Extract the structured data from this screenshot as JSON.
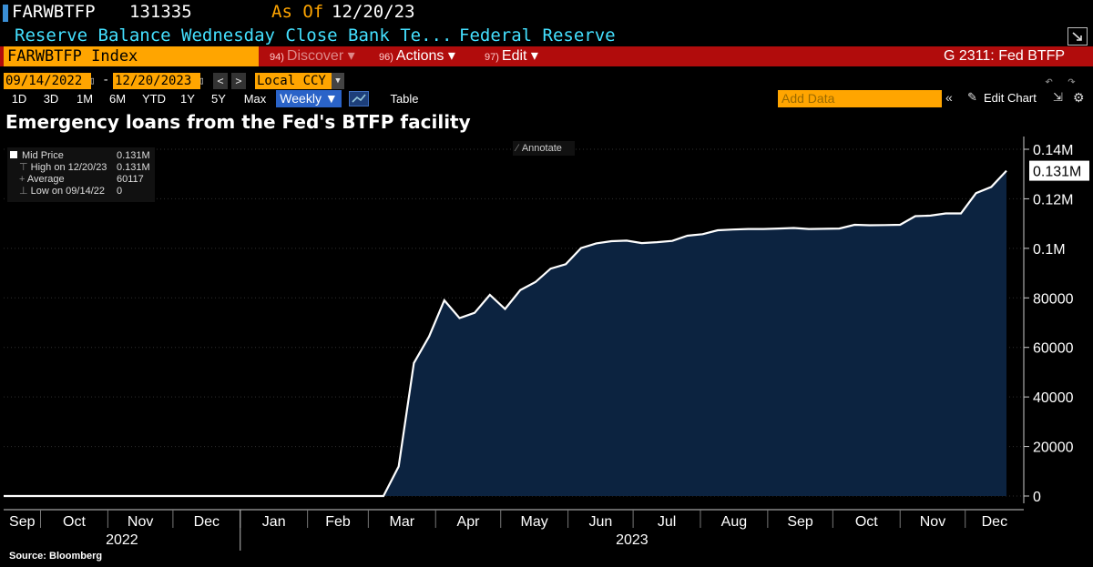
{
  "header": {
    "ticker": "FARWBTFP",
    "value": "131335",
    "as_of_label": "As Of",
    "as_of_date": "12/20/23",
    "description": "Reserve Balance Wednesday Close Bank Te...",
    "source_org": "Federal Reserve"
  },
  "toolbar": {
    "security": "FARWBTFP Index",
    "discover_num": "94)",
    "discover": "Discover",
    "actions_num": "96)",
    "actions": "Actions",
    "edit_num": "97)",
    "edit": "Edit",
    "page_code": "G 2311: Fed BTFP"
  },
  "range": {
    "start_date": "09/14/2022",
    "end_date": "12/20/2023",
    "currency": "Local CCY"
  },
  "periods": [
    "1D",
    "3D",
    "1M",
    "6M",
    "YTD",
    "1Y",
    "5Y",
    "Max"
  ],
  "frequency": "Weekly",
  "table_label": "Table",
  "add_data_placeholder": "Add Data",
  "edit_chart_label": "Edit Chart",
  "legend": {
    "rows": [
      {
        "label": "Mid Price",
        "value": "0.131M"
      },
      {
        "label": "High on 12/20/23",
        "value": "0.131M"
      },
      {
        "label": "Average",
        "value": "60117"
      },
      {
        "label": "Low on 09/14/22",
        "value": "0"
      }
    ]
  },
  "annotate_label": "Annotate",
  "source": "Source: Bloomberg",
  "colors": {
    "accent": "#ffa500",
    "menu_red": "#b10c0c",
    "fill": "#0c2340",
    "line": "#ffffff",
    "cyan": "#44e0ff"
  },
  "chart_data": {
    "type": "area",
    "title": "Emergency loans from the Fed's BTFP facility",
    "xlabel": "",
    "ylabel": "",
    "ylim": [
      0,
      140000
    ],
    "y_ticks": [
      {
        "value": 0,
        "label": "0"
      },
      {
        "value": 20000,
        "label": "20000"
      },
      {
        "value": 40000,
        "label": "40000"
      },
      {
        "value": 60000,
        "label": "60000"
      },
      {
        "value": 80000,
        "label": "80000"
      },
      {
        "value": 100000,
        "label": "0.1M"
      },
      {
        "value": 120000,
        "label": "0.12M"
      },
      {
        "value": 140000,
        "label": "0.14M"
      }
    ],
    "last_value_label": "0.131M",
    "months": [
      "Sep",
      "Oct",
      "Nov",
      "Dec",
      "Jan",
      "Feb",
      "Mar",
      "Apr",
      "May",
      "Jun",
      "Jul",
      "Aug",
      "Sep",
      "Oct",
      "Nov",
      "Dec"
    ],
    "years": [
      "2022",
      "2023"
    ],
    "series": [
      {
        "name": "FARWBTFP Index",
        "x": [
          "2022-09-14",
          "2023-03-08",
          "2023-03-15",
          "2023-03-22",
          "2023-03-29",
          "2023-04-05",
          "2023-04-12",
          "2023-04-19",
          "2023-04-26",
          "2023-05-03",
          "2023-05-10",
          "2023-05-17",
          "2023-05-24",
          "2023-05-31",
          "2023-06-07",
          "2023-06-14",
          "2023-06-21",
          "2023-06-28",
          "2023-07-05",
          "2023-07-12",
          "2023-07-19",
          "2023-07-26",
          "2023-08-02",
          "2023-08-09",
          "2023-08-16",
          "2023-08-23",
          "2023-08-30",
          "2023-09-06",
          "2023-09-13",
          "2023-09-20",
          "2023-09-27",
          "2023-10-04",
          "2023-10-11",
          "2023-10-18",
          "2023-10-25",
          "2023-11-01",
          "2023-11-08",
          "2023-11-15",
          "2023-11-22",
          "2023-11-29",
          "2023-12-06",
          "2023-12-13",
          "2023-12-20"
        ],
        "values": [
          0,
          0,
          11943,
          53669,
          64400,
          79000,
          71840,
          73980,
          81200,
          75500,
          83100,
          86400,
          91800,
          93600,
          100100,
          102000,
          102900,
          103100,
          102100,
          102500,
          103000,
          105100,
          105700,
          107300,
          107600,
          107800,
          107800,
          108000,
          108200,
          107800,
          107900,
          108000,
          109500,
          109300,
          109400,
          109500,
          113000,
          113200,
          114100,
          114100,
          122300,
          124800,
          131335
        ]
      }
    ]
  }
}
